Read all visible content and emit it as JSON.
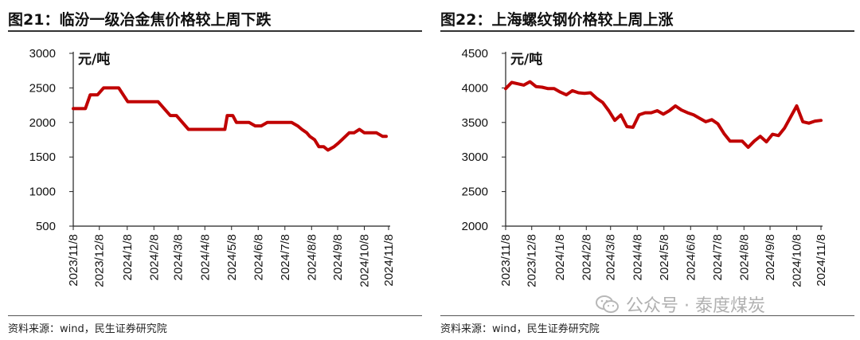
{
  "charts": [
    {
      "title": "图21：临汾一级冶金焦价格较上周下跌",
      "source": "资料来源：wind，民生证券研究院"
    },
    {
      "title": "图22：上海螺纹钢价格较上周上涨",
      "source": "资料来源：wind，民生证券研究院"
    }
  ],
  "watermark": {
    "text": "公众号 · 泰度煤炭",
    "icon": "wechat-icon"
  },
  "colors": {
    "line": "#c00000",
    "axis": "#222222"
  },
  "chart_data": [
    {
      "type": "line",
      "title": "图21：临汾一级冶金焦价格较上周下跌",
      "ylabel": "元/吨",
      "ylim": [
        500,
        3000
      ],
      "yticks": [
        500,
        1000,
        1500,
        2000,
        2500,
        3000
      ],
      "xlim": [
        0,
        52
      ],
      "xtick_labels": [
        "2023/11/8",
        "2023/12/8",
        "2024/1/8",
        "2024/2/8",
        "2024/3/8",
        "2024/4/8",
        "2024/5/8",
        "2024/6/8",
        "2024/7/8",
        "2024/8/8",
        "2024/9/8",
        "2024/10/8",
        "2024/11/8"
      ],
      "xtick_pos": [
        0,
        4.3,
        8.9,
        13.3,
        17.3,
        21.7,
        26.1,
        30.5,
        34.9,
        39.3,
        43.6,
        48,
        52
      ],
      "series": [
        {
          "name": "临汾一级冶金焦",
          "x": [
            0,
            2,
            2.8,
            4,
            5,
            6,
            7,
            7.5,
            9,
            11,
            11.7,
            13,
            14,
            15,
            16,
            17,
            19,
            23,
            25,
            25.4,
            26.3,
            26.9,
            28,
            29,
            30,
            31,
            32,
            35,
            36,
            37,
            37.7,
            38.5,
            39,
            39.8,
            40.5,
            41.3,
            42,
            43,
            43.7,
            44.3,
            45.5,
            46.3,
            47.2,
            48,
            49,
            50,
            51,
            51.6
          ],
          "y": [
            2200,
            2200,
            2400,
            2400,
            2500,
            2500,
            2500,
            2500,
            2300,
            2300,
            2300,
            2300,
            2300,
            2200,
            2100,
            2100,
            1900,
            1900,
            1900,
            2100,
            2100,
            2000,
            2000,
            2000,
            1950,
            1950,
            2000,
            2000,
            2000,
            1950,
            1900,
            1850,
            1800,
            1750,
            1650,
            1650,
            1600,
            1650,
            1700,
            1750,
            1850,
            1850,
            1900,
            1850,
            1850,
            1850,
            1800,
            1800
          ]
        }
      ]
    },
    {
      "type": "line",
      "title": "图22：上海螺纹钢价格较上周上涨",
      "ylabel": "元/吨",
      "ylim": [
        2000,
        4500
      ],
      "yticks": [
        2000,
        2500,
        3000,
        3500,
        4000,
        4500
      ],
      "xlim": [
        0,
        52
      ],
      "xtick_labels": [
        "2023/11/8",
        "2023/12/8",
        "2024/1/8",
        "2024/2/8",
        "2024/3/8",
        "2024/4/8",
        "2024/5/8",
        "2024/6/8",
        "2024/7/8",
        "2024/8/8",
        "2024/9/8",
        "2024/10/8",
        "2024/11/8"
      ],
      "xtick_pos": [
        0,
        4.3,
        8.9,
        13.3,
        17.3,
        21.7,
        26.1,
        30.5,
        34.9,
        39.3,
        43.6,
        48,
        52
      ],
      "series": [
        {
          "name": "上海螺纹钢",
          "x": [
            0,
            1,
            2,
            3,
            4,
            5,
            6,
            7,
            8,
            9,
            10,
            11,
            12,
            13,
            14,
            15,
            16,
            17,
            18,
            19,
            20,
            21,
            22,
            23,
            24,
            25,
            26,
            27,
            28,
            29,
            30,
            31,
            32,
            33,
            34,
            35,
            36,
            37,
            38,
            39,
            40,
            41,
            42,
            43,
            44,
            45,
            46,
            47,
            48,
            49,
            50,
            51,
            52
          ],
          "y": [
            3990,
            4080,
            4060,
            4040,
            4090,
            4020,
            4010,
            3990,
            3990,
            3940,
            3900,
            3960,
            3930,
            3920,
            3930,
            3850,
            3790,
            3670,
            3530,
            3610,
            3440,
            3430,
            3610,
            3640,
            3640,
            3670,
            3620,
            3670,
            3740,
            3680,
            3640,
            3610,
            3560,
            3510,
            3540,
            3480,
            3340,
            3230,
            3230,
            3230,
            3140,
            3230,
            3300,
            3220,
            3330,
            3310,
            3420,
            3580,
            3740,
            3510,
            3490,
            3520,
            3530
          ]
        }
      ]
    }
  ]
}
